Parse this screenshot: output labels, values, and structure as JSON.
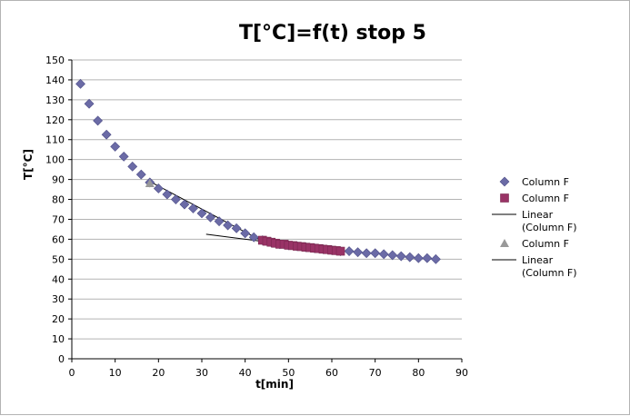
{
  "chart_data": {
    "type": "scatter",
    "title": "T[°C]=f(t) stop 5",
    "xlabel": "t[min]",
    "ylabel": "T[°C]",
    "xlim": [
      0,
      90
    ],
    "ylim": [
      0,
      150
    ],
    "x_ticks": [
      0,
      10,
      20,
      30,
      40,
      50,
      60,
      70,
      80,
      90
    ],
    "y_ticks": [
      0,
      10,
      20,
      30,
      40,
      50,
      60,
      70,
      80,
      90,
      100,
      110,
      120,
      130,
      140,
      150
    ],
    "grid": "horizontal",
    "legend_position": "right",
    "colors": {
      "diamond": "#6b6ba6",
      "square": "#993366",
      "trend": "#000000",
      "triangle": "#999999",
      "grid": "#b3b3b3"
    },
    "series": [
      {
        "name": "Column F",
        "marker": "diamond",
        "x": [
          2,
          4,
          6,
          8,
          10,
          12,
          14,
          16,
          18,
          20,
          22,
          24,
          26,
          28,
          30,
          32,
          34,
          36,
          38,
          40,
          42,
          44,
          46,
          48,
          50,
          52,
          54,
          56,
          58,
          60,
          62,
          64,
          66,
          68,
          70,
          72,
          74,
          76,
          78,
          80,
          82,
          84
        ],
        "y": [
          138,
          128,
          119.5,
          112.5,
          106.5,
          101.5,
          96.5,
          92.5,
          88.5,
          85.5,
          82.5,
          80,
          77.5,
          75.5,
          73,
          71,
          69,
          67,
          65.5,
          63,
          61,
          59.5,
          58.5,
          57.5,
          57,
          56.5,
          56,
          55.5,
          55,
          54.5,
          54,
          54,
          53.5,
          53,
          53,
          52.5,
          52,
          51.5,
          51,
          50.5,
          50.5,
          50
        ]
      },
      {
        "name": "Column F",
        "marker": "square",
        "x": [
          44,
          45,
          46,
          47,
          48,
          49,
          50,
          51,
          52,
          53,
          54,
          55,
          56,
          57,
          58,
          59,
          60,
          61,
          62
        ],
        "y": [
          59.5,
          59,
          58.5,
          58,
          57.5,
          57.5,
          57,
          56.8,
          56.5,
          56.3,
          56,
          55.8,
          55.5,
          55.3,
          55,
          54.8,
          54.5,
          54.3,
          54
        ]
      },
      {
        "name": "Linear\n(Column F)",
        "marker": "line",
        "x": [
          18,
          44
        ],
        "y": [
          89,
          59
        ]
      },
      {
        "name": "Column F",
        "marker": "triangle",
        "x": [
          18
        ],
        "y": [
          88
        ]
      },
      {
        "name": "Linear\n(Column F)",
        "marker": "line",
        "x": [
          31,
          62
        ],
        "y": [
          62.5,
          54
        ]
      }
    ]
  }
}
